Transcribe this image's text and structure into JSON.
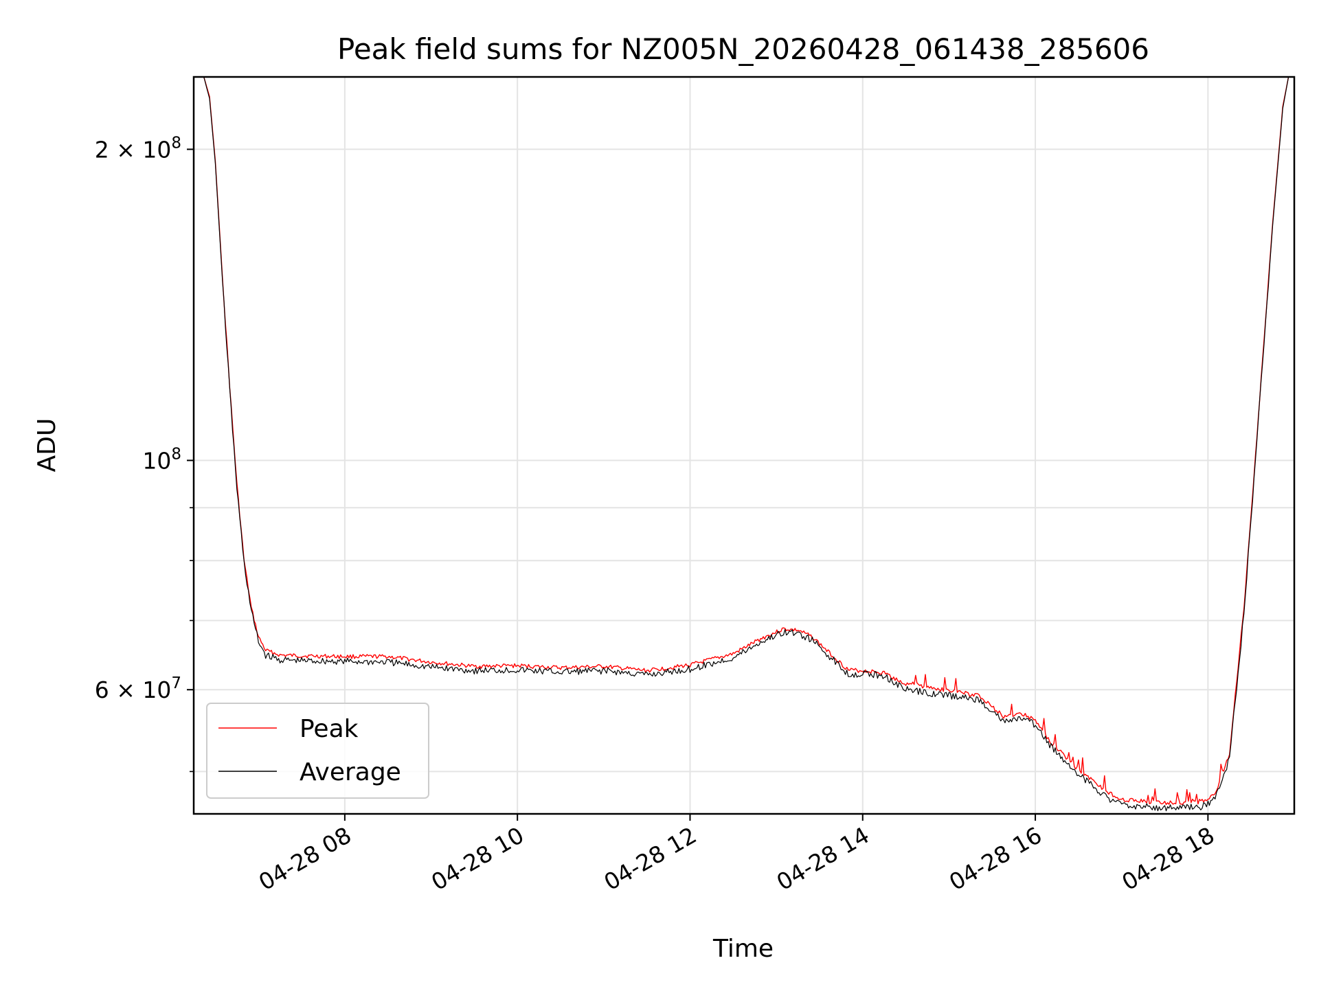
{
  "chart_data": {
    "type": "line",
    "title": "Peak field sums for NZ005N_20260428_061438_285606",
    "xlabel": "Time",
    "ylabel": "ADU",
    "x_scale": "time",
    "y_scale": "log",
    "grid": true,
    "legend_placement": "lower-left",
    "xlim": [
      "2026-04-28T06:15",
      "2026-04-28T19:00"
    ],
    "ylim": [
      45500000,
      235000000
    ],
    "x_ticks": [
      {
        "value": "2026-04-28T08:00",
        "label": "04-28 08"
      },
      {
        "value": "2026-04-28T10:00",
        "label": "04-28 10"
      },
      {
        "value": "2026-04-28T12:00",
        "label": "04-28 12"
      },
      {
        "value": "2026-04-28T14:00",
        "label": "04-28 14"
      },
      {
        "value": "2026-04-28T16:00",
        "label": "04-28 16"
      },
      {
        "value": "2026-04-28T18:00",
        "label": "04-28 18"
      }
    ],
    "y_major_ticks": [
      {
        "value": 60000000,
        "base": "6 × 10",
        "exp": "7"
      },
      {
        "value": 100000000,
        "base": "10",
        "exp": "8"
      },
      {
        "value": 200000000,
        "base": "2 × 10",
        "exp": "8"
      }
    ],
    "y_minor_ticks": [
      50000000,
      70000000,
      80000000,
      90000000
    ],
    "series": [
      {
        "name": "Peak",
        "color": "#ff0000",
        "points": [
          [
            "2026-04-28T06:22",
            235000000
          ],
          [
            "2026-04-28T06:26",
            225000000
          ],
          [
            "2026-04-28T06:30",
            195000000
          ],
          [
            "2026-04-28T06:35",
            150000000
          ],
          [
            "2026-04-28T06:40",
            118000000
          ],
          [
            "2026-04-28T06:45",
            95000000
          ],
          [
            "2026-04-28T06:50",
            80000000
          ],
          [
            "2026-04-28T06:55",
            72000000
          ],
          [
            "2026-04-28T07:00",
            67500000
          ],
          [
            "2026-04-28T07:05",
            65500000
          ],
          [
            "2026-04-28T07:15",
            64800000
          ],
          [
            "2026-04-28T07:30",
            64700000
          ],
          [
            "2026-04-28T08:00",
            64600000
          ],
          [
            "2026-04-28T08:30",
            64600000
          ],
          [
            "2026-04-28T09:00",
            63800000
          ],
          [
            "2026-04-28T09:30",
            63200000
          ],
          [
            "2026-04-28T10:00",
            63300000
          ],
          [
            "2026-04-28T10:30",
            63000000
          ],
          [
            "2026-04-28T11:00",
            63200000
          ],
          [
            "2026-04-28T11:30",
            62600000
          ],
          [
            "2026-04-28T12:00",
            63400000
          ],
          [
            "2026-04-28T12:30",
            65000000
          ],
          [
            "2026-04-28T12:50",
            67300000
          ],
          [
            "2026-04-28T13:05",
            68700000
          ],
          [
            "2026-04-28T13:15",
            68500000
          ],
          [
            "2026-04-28T13:25",
            67500000
          ],
          [
            "2026-04-28T13:35",
            65500000
          ],
          [
            "2026-04-28T13:45",
            63600000
          ],
          [
            "2026-04-28T13:50",
            62700000
          ],
          [
            "2026-04-28T14:00",
            62600000
          ],
          [
            "2026-04-28T14:15",
            62300000
          ],
          [
            "2026-04-28T14:30",
            60700000
          ],
          [
            "2026-04-28T15:00",
            59900000
          ],
          [
            "2026-04-28T15:20",
            59200000
          ],
          [
            "2026-04-28T15:30",
            57800000
          ],
          [
            "2026-04-28T15:38",
            56400000
          ],
          [
            "2026-04-28T15:50",
            57000000
          ],
          [
            "2026-04-28T16:00",
            56000000
          ],
          [
            "2026-04-28T16:10",
            53500000
          ],
          [
            "2026-04-28T16:30",
            50200000
          ],
          [
            "2026-04-28T16:50",
            47800000
          ],
          [
            "2026-04-28T17:00",
            47000000
          ],
          [
            "2026-04-28T17:30",
            46600000
          ],
          [
            "2026-04-28T17:55",
            46700000
          ],
          [
            "2026-04-28T18:05",
            47500000
          ],
          [
            "2026-04-28T18:15",
            52000000
          ],
          [
            "2026-04-28T18:25",
            72000000
          ],
          [
            "2026-04-28T18:35",
            110000000
          ],
          [
            "2026-04-28T18:45",
            170000000
          ],
          [
            "2026-04-28T18:52",
            220000000
          ],
          [
            "2026-04-28T18:56",
            235000000
          ]
        ]
      },
      {
        "name": "Average",
        "color": "#000000",
        "points": [
          [
            "2026-04-28T06:22",
            235000000
          ],
          [
            "2026-04-28T06:26",
            224000000
          ],
          [
            "2026-04-28T06:30",
            194000000
          ],
          [
            "2026-04-28T06:35",
            149000000
          ],
          [
            "2026-04-28T06:40",
            117000000
          ],
          [
            "2026-04-28T06:45",
            94000000
          ],
          [
            "2026-04-28T06:50",
            79500000
          ],
          [
            "2026-04-28T06:55",
            71500000
          ],
          [
            "2026-04-28T07:00",
            66800000
          ],
          [
            "2026-04-28T07:05",
            64800000
          ],
          [
            "2026-04-28T07:15",
            64100000
          ],
          [
            "2026-04-28T07:30",
            64000000
          ],
          [
            "2026-04-28T08:00",
            63900000
          ],
          [
            "2026-04-28T08:30",
            63800000
          ],
          [
            "2026-04-28T09:00",
            63100000
          ],
          [
            "2026-04-28T09:30",
            62600000
          ],
          [
            "2026-04-28T10:00",
            62700000
          ],
          [
            "2026-04-28T10:30",
            62400000
          ],
          [
            "2026-04-28T11:00",
            62600000
          ],
          [
            "2026-04-28T11:30",
            62000000
          ],
          [
            "2026-04-28T12:00",
            62800000
          ],
          [
            "2026-04-28T12:30",
            64400000
          ],
          [
            "2026-04-28T12:50",
            66800000
          ],
          [
            "2026-04-28T13:05",
            68200000
          ],
          [
            "2026-04-28T13:15",
            68000000
          ],
          [
            "2026-04-28T13:25",
            67000000
          ],
          [
            "2026-04-28T13:35",
            65000000
          ],
          [
            "2026-04-28T13:45",
            63100000
          ],
          [
            "2026-04-28T13:50",
            62100000
          ],
          [
            "2026-04-28T14:00",
            62200000
          ],
          [
            "2026-04-28T14:15",
            61900000
          ],
          [
            "2026-04-28T14:30",
            60000000
          ],
          [
            "2026-04-28T15:00",
            59200000
          ],
          [
            "2026-04-28T15:20",
            58700000
          ],
          [
            "2026-04-28T15:30",
            57300000
          ],
          [
            "2026-04-28T15:38",
            55800000
          ],
          [
            "2026-04-28T15:50",
            56300000
          ],
          [
            "2026-04-28T16:00",
            55500000
          ],
          [
            "2026-04-28T16:10",
            53000000
          ],
          [
            "2026-04-28T16:30",
            49700000
          ],
          [
            "2026-04-28T16:50",
            47200000
          ],
          [
            "2026-04-28T17:00",
            46400000
          ],
          [
            "2026-04-28T17:30",
            46100000
          ],
          [
            "2026-04-28T17:55",
            46200000
          ],
          [
            "2026-04-28T18:05",
            47000000
          ],
          [
            "2026-04-28T18:15",
            51500000
          ],
          [
            "2026-04-28T18:25",
            71000000
          ],
          [
            "2026-04-28T18:35",
            109000000
          ],
          [
            "2026-04-28T18:45",
            169000000
          ],
          [
            "2026-04-28T18:52",
            219000000
          ],
          [
            "2026-04-28T18:56",
            235000000
          ]
        ]
      }
    ]
  }
}
